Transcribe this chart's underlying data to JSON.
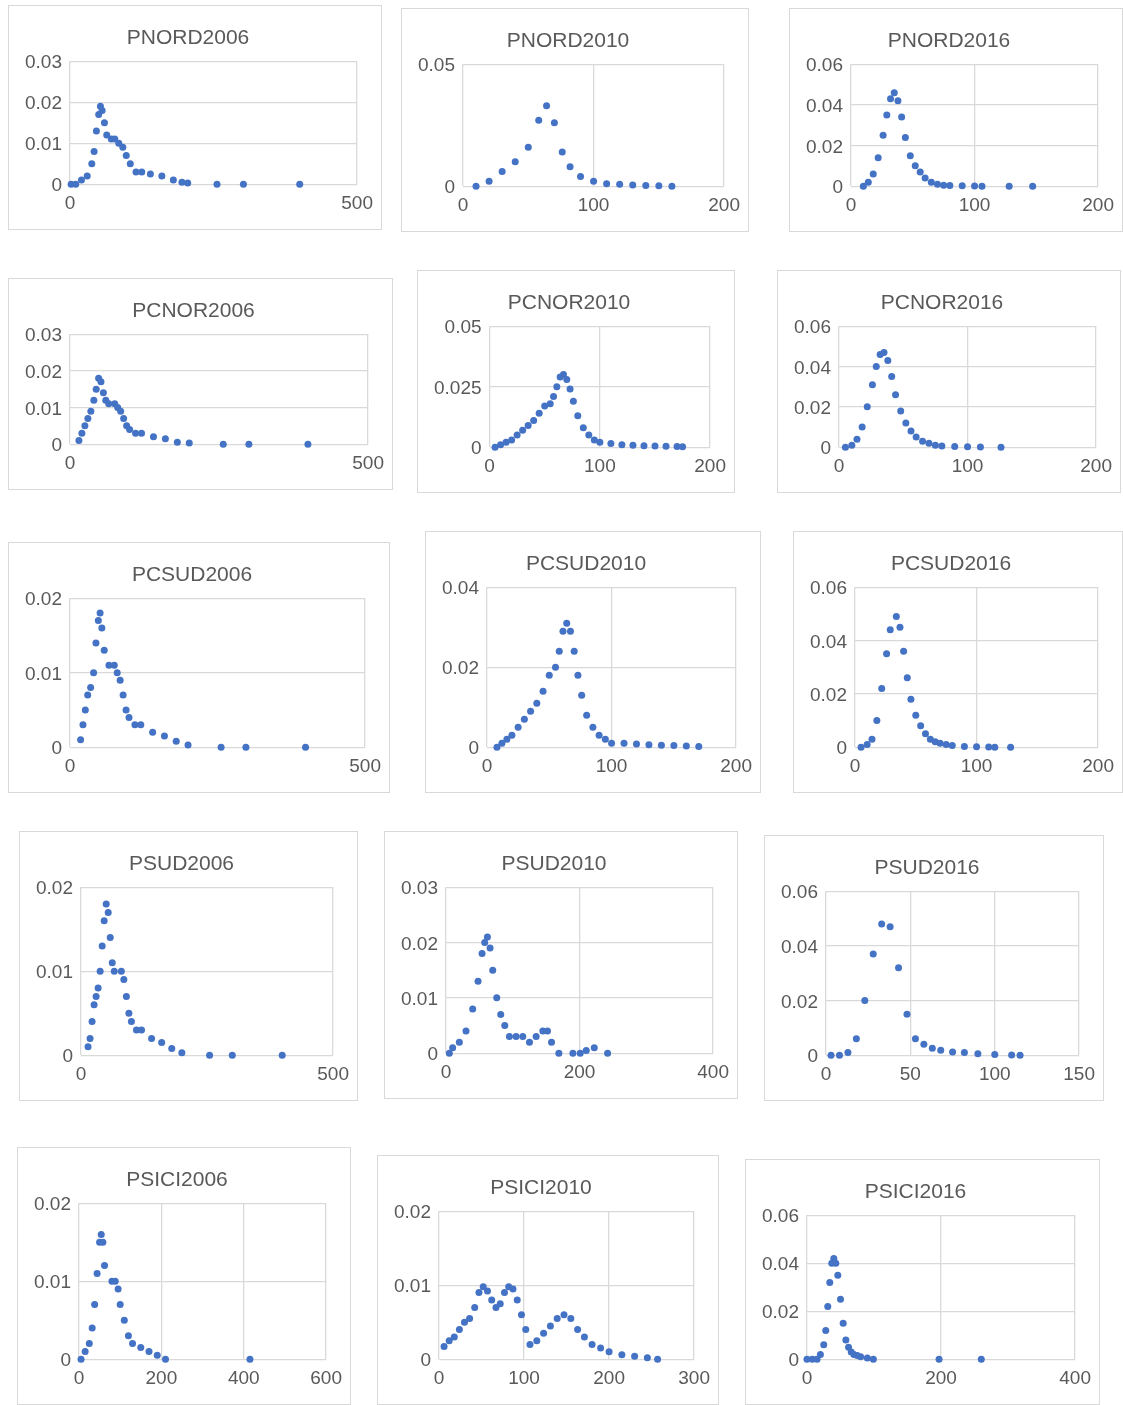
{
  "chart_data": [
    {
      "type": "scatter",
      "title": "PNORD2006",
      "color": "#4472c4",
      "marker": "circle",
      "grid": true,
      "xlim": [
        0,
        500
      ],
      "xticks": [
        0,
        500
      ],
      "ylim": [
        0,
        0.03
      ],
      "yticks": [
        0,
        0.01,
        0.02,
        0.03
      ],
      "x": [
        2,
        10,
        20,
        30,
        38,
        42,
        46,
        50,
        53,
        56,
        60,
        64,
        72,
        78,
        85,
        92,
        98,
        105,
        115,
        125,
        140,
        160,
        180,
        195,
        205,
        256,
        302,
        400
      ],
      "values": [
        0,
        0,
        0.001,
        0.002,
        0.005,
        0.008,
        0.013,
        0.017,
        0.019,
        0.018,
        0.015,
        0.012,
        0.011,
        0.011,
        0.01,
        0.009,
        0.007,
        0.005,
        0.003,
        0.003,
        0.0025,
        0.002,
        0.001,
        0.0005,
        0.0003,
        0,
        0,
        0
      ]
    },
    {
      "type": "scatter",
      "title": "PNORD2010",
      "color": "#4472c4",
      "marker": "circle",
      "grid": true,
      "xlim": [
        0,
        200
      ],
      "xticks": [
        0,
        100,
        200
      ],
      "ylim": [
        0,
        0.05
      ],
      "yticks": [
        0,
        0.05
      ],
      "x": [
        10,
        20,
        30,
        40,
        50,
        58,
        64,
        70,
        76,
        82,
        90,
        100,
        110,
        120,
        130,
        140,
        150,
        160
      ],
      "values": [
        0,
        0.002,
        0.006,
        0.01,
        0.016,
        0.027,
        0.033,
        0.026,
        0.014,
        0.008,
        0.004,
        0.002,
        0.001,
        0.0008,
        0.0005,
        0.0003,
        0.0002,
        0
      ]
    },
    {
      "type": "scatter",
      "title": "PNORD2016",
      "color": "#4472c4",
      "marker": "circle",
      "grid": true,
      "xlim": [
        0,
        200
      ],
      "xticks": [
        0,
        100,
        200
      ],
      "ylim": [
        0,
        0.06
      ],
      "yticks": [
        0,
        0.02,
        0.04,
        0.06
      ],
      "x": [
        10,
        14,
        18,
        22,
        26,
        29,
        32,
        35,
        38,
        41,
        44,
        48,
        52,
        56,
        60,
        65,
        70,
        75,
        80,
        90,
        100,
        106,
        128,
        147
      ],
      "values": [
        0,
        0.002,
        0.006,
        0.014,
        0.025,
        0.035,
        0.043,
        0.046,
        0.042,
        0.034,
        0.024,
        0.015,
        0.01,
        0.007,
        0.004,
        0.002,
        0.001,
        0.0005,
        0.0003,
        0.0002,
        0.0001,
        0,
        0,
        0
      ]
    },
    {
      "type": "scatter",
      "title": "PCNOR2006",
      "color": "#4472c4",
      "marker": "circle",
      "grid": true,
      "xlim": [
        0,
        500
      ],
      "xticks": [
        0,
        500
      ],
      "ylim": [
        0,
        0.03
      ],
      "yticks": [
        0,
        0.01,
        0.02,
        0.03
      ],
      "x": [
        15,
        20,
        25,
        30,
        35,
        40,
        44,
        48,
        52,
        56,
        60,
        65,
        75,
        80,
        85,
        90,
        95,
        100,
        110,
        120,
        140,
        160,
        180,
        200,
        257,
        300,
        399
      ],
      "values": [
        0.001,
        0.003,
        0.005,
        0.007,
        0.009,
        0.012,
        0.015,
        0.018,
        0.017,
        0.014,
        0.012,
        0.011,
        0.011,
        0.01,
        0.009,
        0.007,
        0.005,
        0.004,
        0.003,
        0.003,
        0.002,
        0.0015,
        0.0005,
        0.0003,
        0,
        0,
        0
      ]
    },
    {
      "type": "scatter",
      "title": "PCNOR2010",
      "color": "#4472c4",
      "marker": "circle",
      "grid": true,
      "xlim": [
        0,
        200
      ],
      "xticks": [
        0,
        100,
        200
      ],
      "ylim": [
        0,
        0.05
      ],
      "yticks": [
        0,
        0.025,
        0.05
      ],
      "x": [
        5,
        10,
        15,
        20,
        25,
        30,
        35,
        40,
        45,
        50,
        55,
        58,
        61,
        64,
        67,
        70,
        73,
        76,
        80,
        85,
        90,
        95,
        100,
        110,
        120,
        130,
        140,
        150,
        160,
        170,
        175
      ],
      "values": [
        0,
        0.001,
        0.002,
        0.003,
        0.005,
        0.007,
        0.009,
        0.011,
        0.014,
        0.017,
        0.018,
        0.021,
        0.025,
        0.029,
        0.03,
        0.028,
        0.024,
        0.019,
        0.013,
        0.008,
        0.005,
        0.003,
        0.002,
        0.0015,
        0.001,
        0.0008,
        0.0006,
        0.0005,
        0.0004,
        0.0003,
        0.0002
      ]
    },
    {
      "type": "scatter",
      "title": "PCNOR2016",
      "color": "#4472c4",
      "marker": "circle",
      "grid": true,
      "xlim": [
        0,
        200
      ],
      "xticks": [
        0,
        100,
        200
      ],
      "ylim": [
        0,
        0.06
      ],
      "yticks": [
        0,
        0.02,
        0.04,
        0.06
      ],
      "x": [
        5,
        10,
        14,
        18,
        22,
        26,
        29,
        32,
        35,
        38,
        41,
        44,
        48,
        52,
        56,
        60,
        65,
        70,
        75,
        80,
        90,
        100,
        110,
        126
      ],
      "values": [
        0,
        0.001,
        0.004,
        0.01,
        0.02,
        0.031,
        0.04,
        0.046,
        0.047,
        0.043,
        0.035,
        0.026,
        0.018,
        0.012,
        0.008,
        0.005,
        0.003,
        0.002,
        0.001,
        0.0006,
        0.0003,
        0.0002,
        0.0001,
        0
      ]
    },
    {
      "type": "scatter",
      "title": "PCSUD2006",
      "color": "#4472c4",
      "marker": "circle",
      "grid": true,
      "xlim": [
        0,
        500
      ],
      "xticks": [
        0,
        500
      ],
      "ylim": [
        0,
        0.02
      ],
      "yticks": [
        0,
        0.01,
        0.02
      ],
      "x": [
        18,
        22,
        26,
        30,
        35,
        40,
        44,
        48,
        51,
        54,
        58,
        66,
        75,
        80,
        85,
        90,
        95,
        100,
        110,
        120,
        140,
        160,
        180,
        200,
        256,
        298,
        399
      ],
      "values": [
        0.001,
        0.003,
        0.005,
        0.007,
        0.008,
        0.01,
        0.014,
        0.017,
        0.018,
        0.016,
        0.013,
        0.011,
        0.011,
        0.01,
        0.009,
        0.007,
        0.005,
        0.004,
        0.003,
        0.003,
        0.002,
        0.0015,
        0.0008,
        0.0003,
        0,
        0,
        0
      ]
    },
    {
      "type": "scatter",
      "title": "PCSUD2010",
      "color": "#4472c4",
      "marker": "circle",
      "grid": true,
      "xlim": [
        0,
        200
      ],
      "xticks": [
        0,
        100,
        200
      ],
      "ylim": [
        0,
        0.04
      ],
      "yticks": [
        0,
        0.02,
        0.04
      ],
      "x": [
        8,
        12,
        16,
        20,
        25,
        30,
        35,
        40,
        45,
        50,
        55,
        58,
        61,
        64,
        67,
        70,
        73,
        76,
        80,
        85,
        90,
        95,
        100,
        110,
        120,
        130,
        140,
        150,
        160,
        170
      ],
      "values": [
        0,
        0.001,
        0.002,
        0.003,
        0.005,
        0.007,
        0.009,
        0.011,
        0.014,
        0.018,
        0.02,
        0.024,
        0.029,
        0.031,
        0.029,
        0.024,
        0.018,
        0.013,
        0.008,
        0.005,
        0.003,
        0.002,
        0.001,
        0.001,
        0.0008,
        0.0006,
        0.0005,
        0.0004,
        0.0003,
        0.0002
      ]
    },
    {
      "type": "scatter",
      "title": "PCSUD2016",
      "color": "#4472c4",
      "marker": "circle",
      "grid": true,
      "xlim": [
        0,
        200
      ],
      "xticks": [
        0,
        100,
        200
      ],
      "ylim": [
        0,
        0.06
      ],
      "yticks": [
        0,
        0.02,
        0.04,
        0.06
      ],
      "x": [
        5,
        10,
        14,
        18,
        22,
        26,
        29,
        34,
        37,
        40,
        43,
        46,
        50,
        54,
        58,
        62,
        66,
        70,
        75,
        80,
        90,
        100,
        110,
        115,
        128
      ],
      "values": [
        0,
        0.001,
        0.003,
        0.01,
        0.022,
        0.035,
        0.044,
        0.049,
        0.045,
        0.036,
        0.026,
        0.018,
        0.012,
        0.008,
        0.005,
        0.003,
        0.002,
        0.0015,
        0.001,
        0.0006,
        0.0003,
        0.0002,
        0.0001,
        0,
        0
      ]
    },
    {
      "type": "scatter",
      "title": "PSUD2006",
      "color": "#4472c4",
      "marker": "circle",
      "grid": true,
      "xlim": [
        0,
        500
      ],
      "xticks": [
        0,
        500
      ],
      "ylim": [
        0,
        0.02
      ],
      "yticks": [
        0,
        0.01,
        0.02
      ],
      "x": [
        14,
        18,
        22,
        26,
        30,
        34,
        38,
        42,
        46,
        50,
        54,
        58,
        62,
        66,
        80,
        85,
        90,
        95,
        100,
        110,
        120,
        140,
        160,
        180,
        200,
        255,
        300,
        399
      ],
      "values": [
        0.001,
        0.002,
        0.004,
        0.006,
        0.007,
        0.008,
        0.01,
        0.013,
        0.016,
        0.018,
        0.017,
        0.014,
        0.011,
        0.01,
        0.01,
        0.009,
        0.007,
        0.005,
        0.004,
        0.003,
        0.003,
        0.002,
        0.0015,
        0.0008,
        0.0003,
        0,
        0,
        0
      ]
    },
    {
      "type": "scatter",
      "title": "PSUD2010",
      "color": "#4472c4",
      "marker": "circle",
      "grid": true,
      "xlim": [
        0,
        400
      ],
      "xticks": [
        0,
        200,
        400
      ],
      "ylim": [
        0,
        0.03
      ],
      "yticks": [
        0,
        0.01,
        0.02,
        0.03
      ],
      "x": [
        5,
        10,
        20,
        30,
        40,
        48,
        54,
        58,
        62,
        66,
        70,
        76,
        82,
        88,
        95,
        105,
        115,
        125,
        135,
        145,
        152,
        158,
        169,
        190,
        201,
        210,
        222,
        242
      ],
      "values": [
        0,
        0.001,
        0.002,
        0.004,
        0.008,
        0.013,
        0.018,
        0.02,
        0.021,
        0.019,
        0.015,
        0.01,
        0.007,
        0.005,
        0.003,
        0.003,
        0.003,
        0.002,
        0.003,
        0.004,
        0.004,
        0.002,
        0,
        0,
        0,
        0.0005,
        0.001,
        0
      ]
    },
    {
      "type": "scatter",
      "title": "PSUD2016",
      "color": "#4472c4",
      "marker": "circle",
      "grid": true,
      "xlim": [
        0,
        150
      ],
      "xticks": [
        0,
        50,
        100,
        150
      ],
      "ylim": [
        0,
        0.06
      ],
      "yticks": [
        0,
        0.02,
        0.04,
        0.06
      ],
      "x": [
        3,
        8,
        13,
        18,
        23,
        28,
        33,
        38,
        43,
        48,
        53,
        58,
        63,
        68,
        75,
        82,
        90,
        100,
        110,
        115
      ],
      "values": [
        0,
        0,
        0.001,
        0.006,
        0.02,
        0.037,
        0.048,
        0.047,
        0.032,
        0.015,
        0.006,
        0.004,
        0.0025,
        0.0018,
        0.0012,
        0.001,
        0.0005,
        0.0003,
        0.0001,
        0
      ]
    },
    {
      "type": "scatter",
      "title": "PSICI2006",
      "color": "#4472c4",
      "marker": "circle",
      "grid": true,
      "xlim": [
        0,
        600
      ],
      "xticks": [
        0,
        200,
        400,
        600
      ],
      "ylim": [
        0,
        0.02
      ],
      "yticks": [
        0,
        0.01,
        0.02
      ],
      "x": [
        5,
        15,
        25,
        32,
        38,
        44,
        50,
        54,
        58,
        62,
        80,
        88,
        95,
        100,
        110,
        120,
        130,
        150,
        170,
        190,
        210,
        415
      ],
      "values": [
        0,
        0.001,
        0.002,
        0.004,
        0.007,
        0.011,
        0.015,
        0.016,
        0.015,
        0.012,
        0.01,
        0.01,
        0.009,
        0.007,
        0.005,
        0.003,
        0.002,
        0.0015,
        0.001,
        0.0005,
        0,
        0
      ]
    },
    {
      "type": "scatter",
      "title": "PSICI2010",
      "color": "#4472c4",
      "marker": "circle",
      "grid": true,
      "xlim": [
        0,
        300
      ],
      "xticks": [
        0,
        100,
        200,
        300
      ],
      "ylim": [
        0,
        0.02
      ],
      "yticks": [
        0,
        0.01,
        0.02
      ],
      "x": [
        6,
        12,
        18,
        24,
        30,
        36,
        42,
        47,
        52,
        57,
        62,
        67,
        72,
        77,
        82,
        87,
        92,
        97,
        102,
        107,
        115,
        123,
        131,
        139,
        147,
        155,
        163,
        171,
        180,
        190,
        200,
        215,
        230,
        245,
        257
      ],
      "values": [
        0.0017,
        0.0025,
        0.003,
        0.004,
        0.005,
        0.0055,
        0.007,
        0.009,
        0.0098,
        0.0092,
        0.008,
        0.007,
        0.0075,
        0.009,
        0.0098,
        0.0095,
        0.008,
        0.006,
        0.004,
        0.002,
        0.0025,
        0.0035,
        0.0045,
        0.0055,
        0.006,
        0.0055,
        0.004,
        0.003,
        0.002,
        0.0015,
        0.001,
        0.0006,
        0.0004,
        0.0002,
        0
      ]
    },
    {
      "type": "scatter",
      "title": "PSICI2016",
      "color": "#4472c4",
      "marker": "circle",
      "grid": true,
      "xlim": [
        0,
        400
      ],
      "xticks": [
        0,
        200,
        400
      ],
      "ylim": [
        0,
        0.06
      ],
      "yticks": [
        0,
        0.02,
        0.04,
        0.06
      ],
      "x": [
        0,
        8,
        15,
        20,
        25,
        28,
        31,
        34,
        37,
        40,
        43,
        46,
        50,
        54,
        58,
        62,
        66,
        70,
        75,
        80,
        90,
        99,
        197,
        260
      ],
      "values": [
        0,
        0,
        0,
        0.002,
        0.006,
        0.012,
        0.022,
        0.032,
        0.04,
        0.042,
        0.04,
        0.035,
        0.025,
        0.015,
        0.008,
        0.005,
        0.003,
        0.002,
        0.0015,
        0.001,
        0.0005,
        0,
        0,
        0
      ]
    }
  ]
}
